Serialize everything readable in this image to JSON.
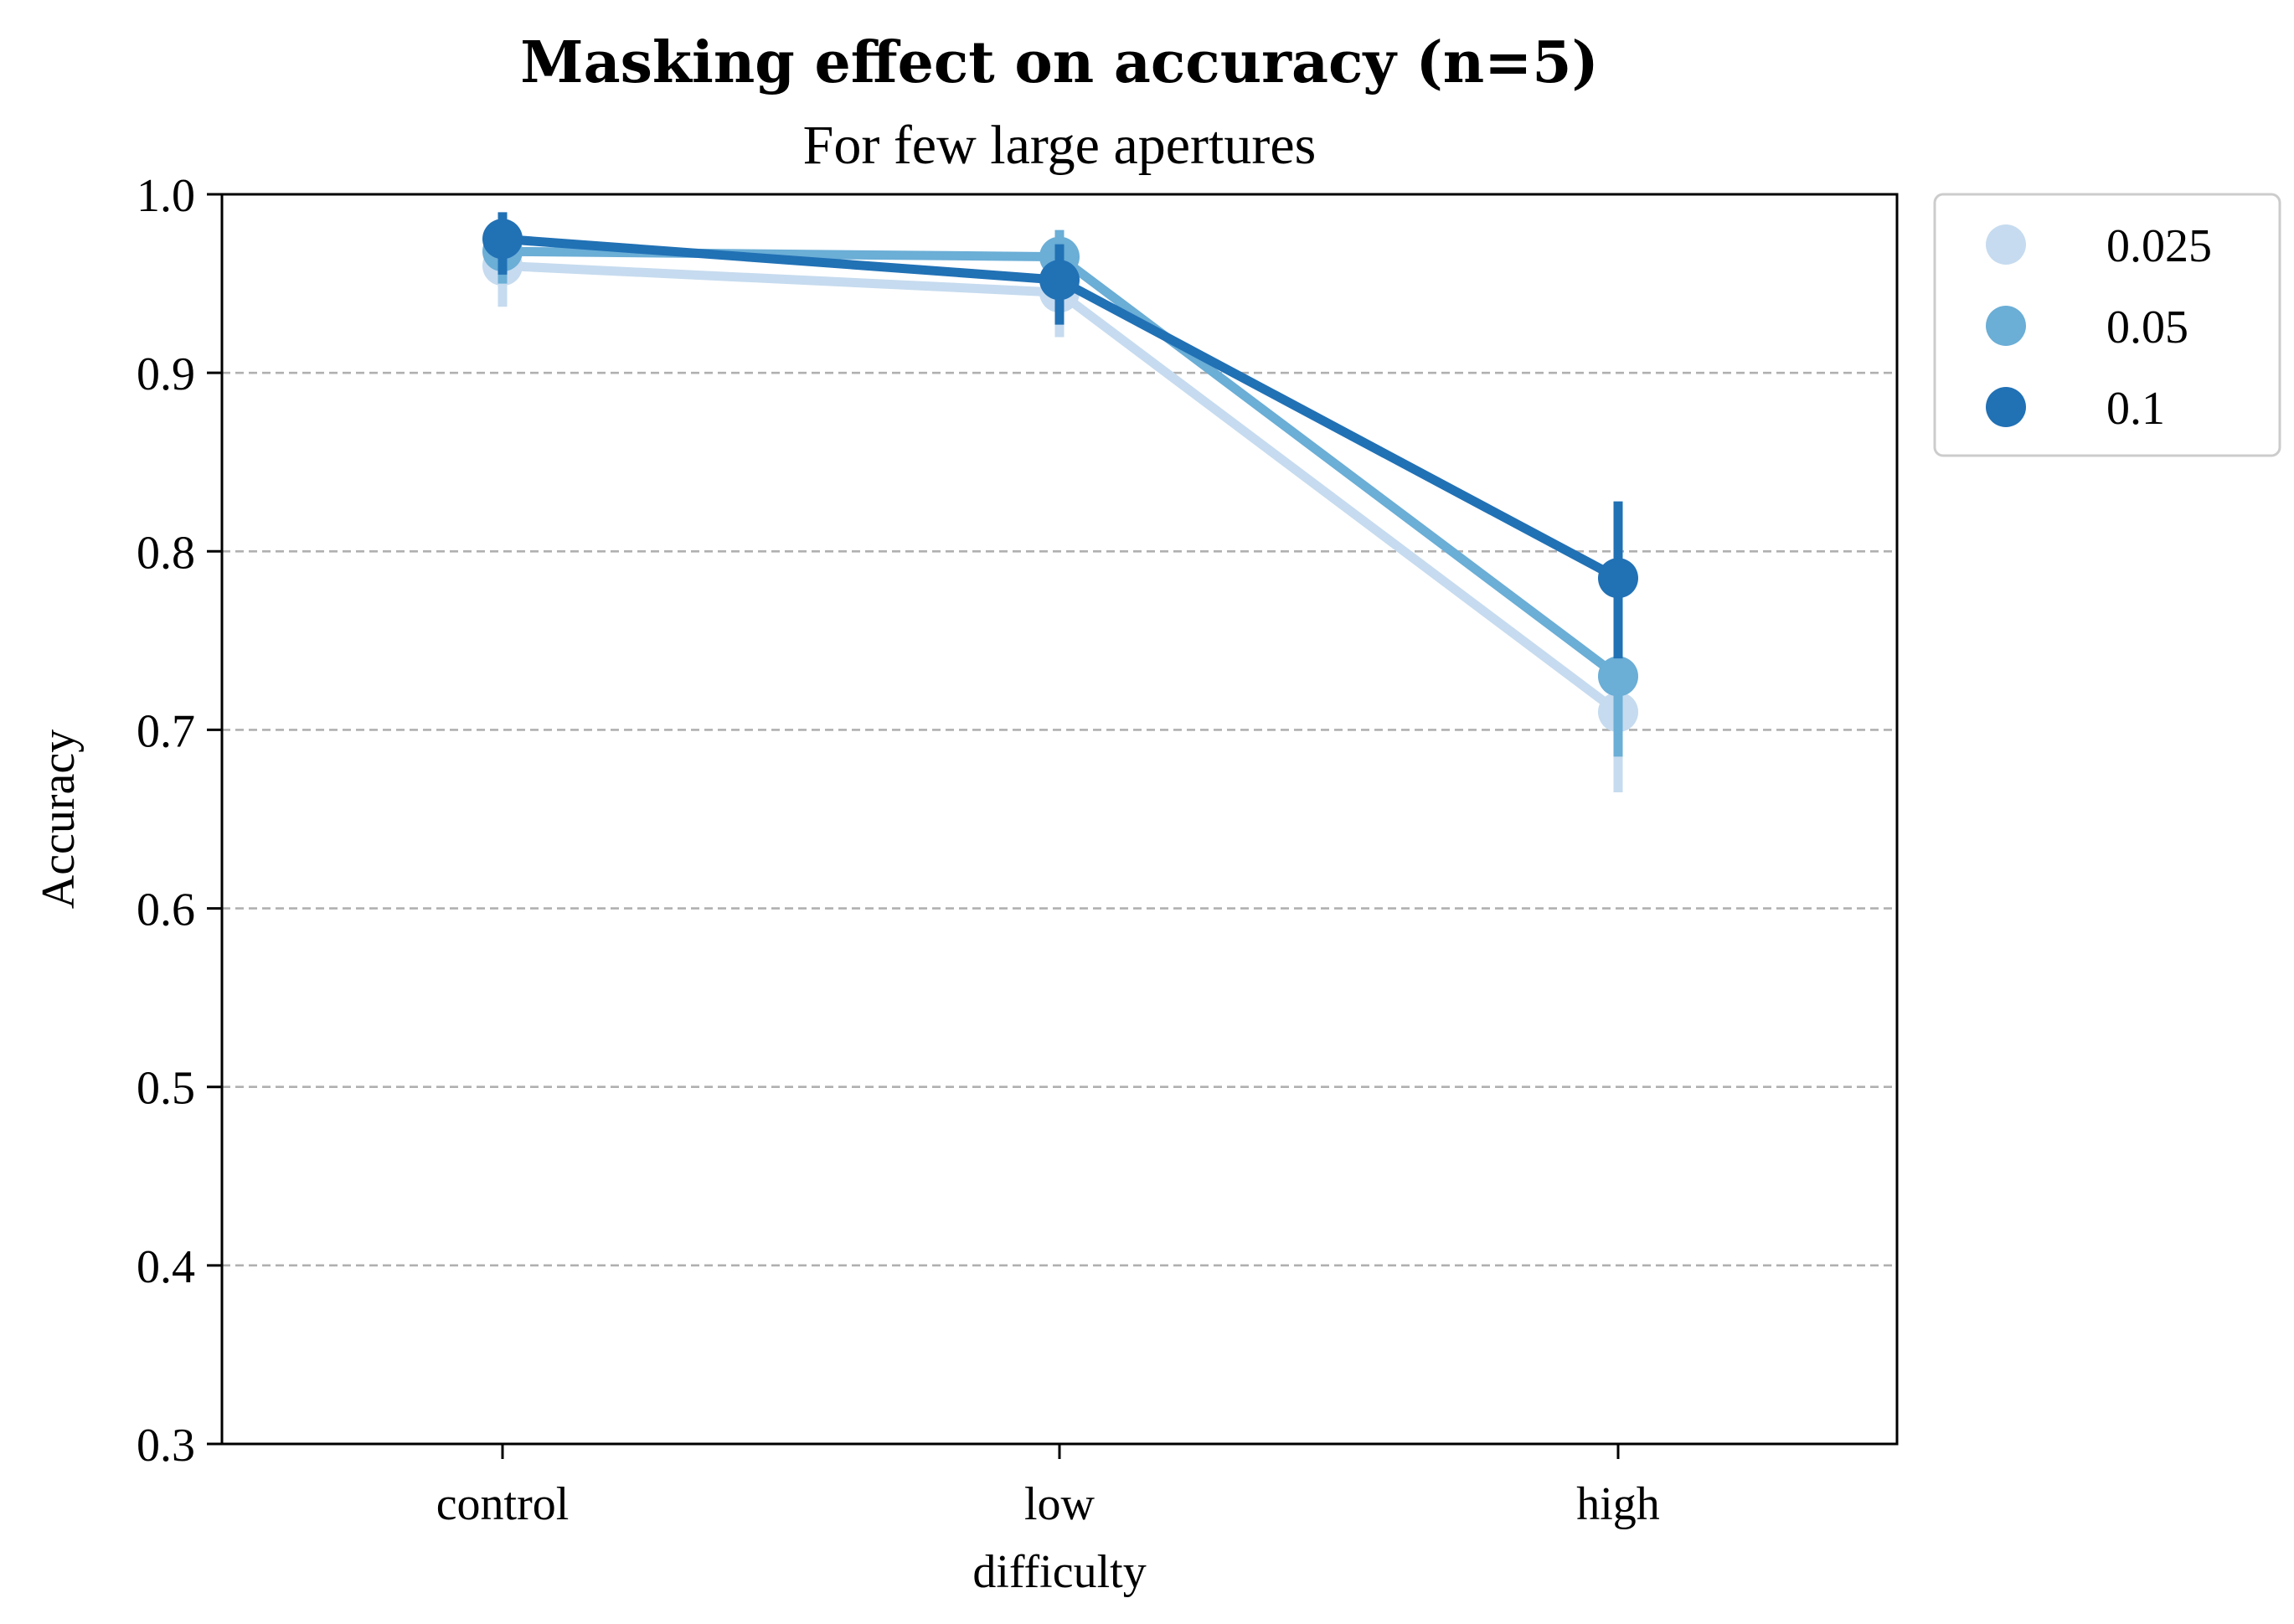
{
  "chart_data": {
    "type": "line",
    "title": "Masking effect on accuracy (n=5)",
    "subtitle": "For few large apertures",
    "xlabel": "difficulty",
    "ylabel": "Accuracy",
    "categories": [
      "control",
      "low",
      "high"
    ],
    "ylim": [
      0.3,
      1.0
    ],
    "yticks": [
      "0.3",
      "0.4",
      "0.5",
      "0.6",
      "0.7",
      "0.8",
      "0.9",
      "1.0"
    ],
    "grid": "horizontal dashed",
    "legend_position": "outside top-right",
    "series": [
      {
        "name": "0.025",
        "color": "#c6dbef",
        "values": [
          0.96,
          0.945,
          0.71
        ],
        "err_low": [
          0.937,
          0.92,
          0.665
        ],
        "err_high": [
          0.978,
          0.963,
          0.745
        ]
      },
      {
        "name": "0.05",
        "color": "#6baed6",
        "values": [
          0.968,
          0.965,
          0.73
        ],
        "err_low": [
          0.95,
          0.94,
          0.685
        ],
        "err_high": [
          0.985,
          0.98,
          0.77
        ]
      },
      {
        "name": "0.1",
        "color": "#2171b5",
        "values": [
          0.975,
          0.952,
          0.785
        ],
        "err_low": [
          0.955,
          0.927,
          0.74
        ],
        "err_high": [
          0.99,
          0.972,
          0.828
        ]
      }
    ]
  }
}
